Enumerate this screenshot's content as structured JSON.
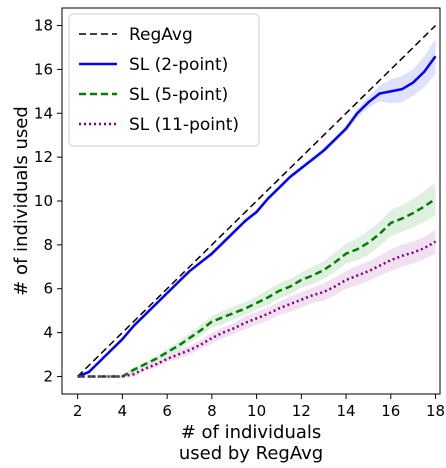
{
  "chart_data": {
    "type": "line",
    "title": "",
    "xlabel": [
      "# of individuals",
      "used by RegAvg"
    ],
    "ylabel": "# of individuals used",
    "xlim": [
      1.3,
      18.2
    ],
    "ylim": [
      1.2,
      18.8
    ],
    "xticks": [
      2,
      4,
      6,
      8,
      10,
      12,
      14,
      16,
      18
    ],
    "yticks": [
      2,
      4,
      6,
      8,
      10,
      12,
      14,
      16,
      18
    ],
    "grid": false,
    "legend_position": "top-left",
    "series": [
      {
        "name": "RegAvg",
        "color": "#000000",
        "style": "dashed",
        "x": [
          2,
          18
        ],
        "y": [
          2,
          18
        ],
        "band": null
      },
      {
        "name": "SL (2-point)",
        "color": "#0000ff",
        "style": "solid",
        "x": [
          2,
          2.5,
          3,
          3.5,
          4,
          4.5,
          5,
          5.5,
          6,
          6.5,
          7,
          7.5,
          8,
          8.5,
          9,
          9.5,
          10,
          10.5,
          11,
          11.5,
          12,
          12.5,
          13,
          13.5,
          14,
          14.5,
          15,
          15.5,
          16,
          16.5,
          17,
          17.5,
          18
        ],
        "y": [
          2,
          2.2,
          2.7,
          3.2,
          3.7,
          4.3,
          4.8,
          5.3,
          5.8,
          6.3,
          6.8,
          7.2,
          7.6,
          8.1,
          8.6,
          9.1,
          9.5,
          10.1,
          10.6,
          11.1,
          11.5,
          11.9,
          12.3,
          12.8,
          13.3,
          14,
          14.5,
          14.9,
          15,
          15.1,
          15.4,
          15.9,
          16.6
        ],
        "band": [
          0,
          0,
          0.05,
          0.05,
          0.05,
          0.05,
          0.05,
          0.05,
          0.05,
          0.05,
          0.05,
          0.05,
          0.1,
          0.1,
          0.1,
          0.1,
          0.1,
          0.1,
          0.1,
          0.1,
          0.1,
          0.1,
          0.12,
          0.12,
          0.15,
          0.2,
          0.25,
          0.35,
          0.55,
          0.6,
          0.6,
          0.7,
          0.8
        ]
      },
      {
        "name": "SL (5-point)",
        "color": "#008000",
        "style": "dashed",
        "x": [
          2,
          2.5,
          3,
          3.5,
          4,
          4.5,
          5,
          5.5,
          6,
          6.5,
          7,
          7.5,
          8,
          8.5,
          9,
          9.5,
          10,
          10.5,
          11,
          11.5,
          12,
          12.5,
          13,
          13.5,
          14,
          14.5,
          15,
          15.5,
          16,
          16.5,
          17,
          17.5,
          18
        ],
        "y": [
          2,
          2,
          2,
          2,
          2,
          2.3,
          2.55,
          2.8,
          3.1,
          3.4,
          3.75,
          4.1,
          4.5,
          4.7,
          4.9,
          5.1,
          5.35,
          5.6,
          5.9,
          6.1,
          6.4,
          6.6,
          6.85,
          7.2,
          7.6,
          7.8,
          8.1,
          8.5,
          9,
          9.2,
          9.45,
          9.75,
          10.1
        ],
        "band": [
          0,
          0,
          0,
          0.05,
          0.05,
          0.1,
          0.1,
          0.1,
          0.15,
          0.2,
          0.2,
          0.25,
          0.25,
          0.3,
          0.3,
          0.3,
          0.3,
          0.35,
          0.35,
          0.35,
          0.35,
          0.4,
          0.4,
          0.45,
          0.45,
          0.5,
          0.55,
          0.55,
          0.6,
          0.6,
          0.65,
          0.7,
          0.75
        ]
      },
      {
        "name": "SL (11-point)",
        "color": "#800080",
        "style": "dotted",
        "x": [
          2,
          2.5,
          3,
          3.5,
          4,
          4.5,
          5,
          5.5,
          6,
          6.5,
          7,
          7.5,
          8,
          8.5,
          9,
          9.5,
          10,
          10.5,
          11,
          11.5,
          12,
          12.5,
          13,
          13.5,
          14,
          14.5,
          15,
          15.5,
          16,
          16.5,
          17,
          17.5,
          18
        ],
        "y": [
          2,
          2,
          2,
          2,
          2,
          2.1,
          2.35,
          2.55,
          2.8,
          3,
          3.2,
          3.45,
          3.75,
          4,
          4.2,
          4.45,
          4.65,
          4.85,
          5.1,
          5.3,
          5.5,
          5.7,
          5.85,
          6.1,
          6.4,
          6.6,
          6.8,
          7.05,
          7.3,
          7.5,
          7.65,
          7.85,
          8.15
        ],
        "band": [
          0,
          0,
          0,
          0.05,
          0.05,
          0.1,
          0.1,
          0.15,
          0.15,
          0.2,
          0.2,
          0.2,
          0.25,
          0.25,
          0.25,
          0.3,
          0.3,
          0.3,
          0.3,
          0.35,
          0.35,
          0.35,
          0.4,
          0.4,
          0.4,
          0.45,
          0.45,
          0.45,
          0.5,
          0.5,
          0.5,
          0.5,
          0.55
        ]
      }
    ]
  }
}
